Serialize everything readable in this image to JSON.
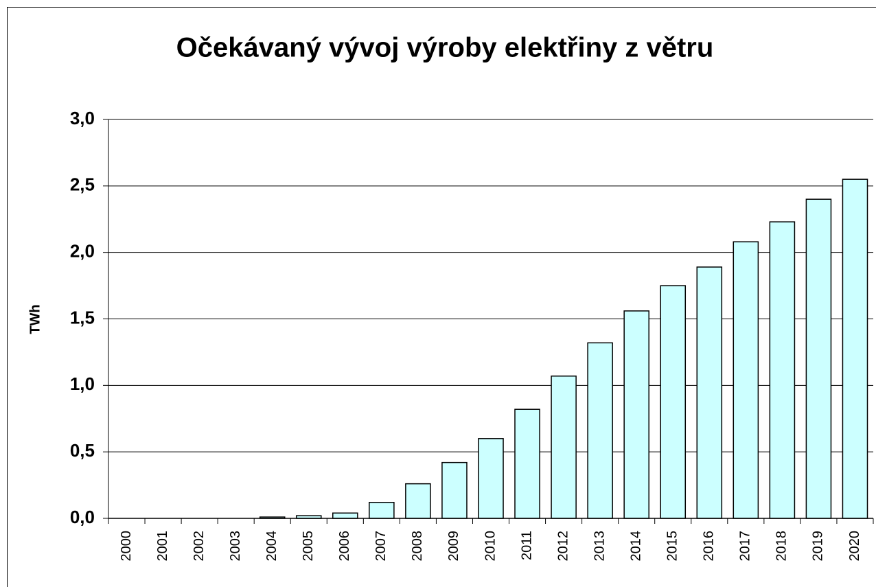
{
  "chart_data": {
    "type": "bar",
    "title": "Očekávaný vývoj výroby elektřiny z větru",
    "y_label": "TWh",
    "categories": [
      "2000",
      "2001",
      "2002",
      "2003",
      "2004",
      "2005",
      "2006",
      "2007",
      "2008",
      "2009",
      "2010",
      "2011",
      "2012",
      "2013",
      "2014",
      "2015",
      "2016",
      "2017",
      "2018",
      "2019",
      "2020"
    ],
    "values": [
      0,
      0,
      0,
      0,
      0.01,
      0.02,
      0.04,
      0.12,
      0.26,
      0.42,
      0.6,
      0.82,
      1.07,
      1.32,
      1.56,
      1.75,
      1.89,
      2.08,
      2.23,
      2.4,
      2.55
    ],
    "color": "#ccffff",
    "ylim": [
      0,
      3
    ],
    "yticks": [
      {
        "value": 0,
        "label": "0,0"
      },
      {
        "value": 0.5,
        "label": "0,5"
      },
      {
        "value": 1,
        "label": "1,0"
      },
      {
        "value": 1.5,
        "label": "1,5"
      },
      {
        "value": 2,
        "label": "2,0"
      },
      {
        "value": 2.5,
        "label": "2,5"
      },
      {
        "value": 3,
        "label": "3,0"
      }
    ],
    "grid": true
  }
}
